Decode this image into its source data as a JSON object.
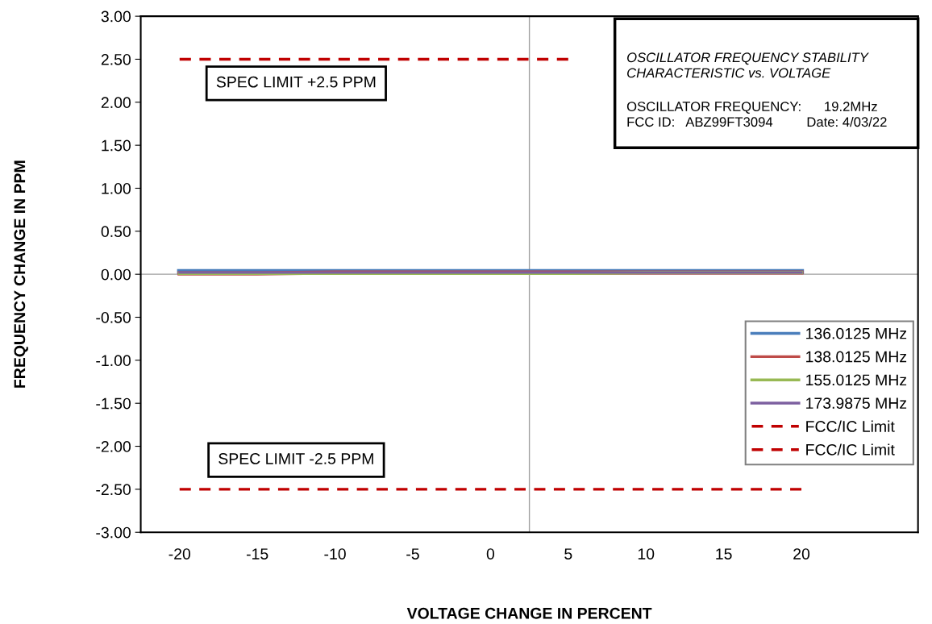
{
  "chart_data": {
    "type": "line",
    "xlabel": "VOLTAGE CHANGE IN PERCENT",
    "ylabel": "FREQUENCY CHANGE IN PPM",
    "x": [
      -20,
      -15,
      -10,
      -5,
      0,
      5,
      10,
      15,
      20
    ],
    "series": [
      {
        "name": "136.0125 MHz",
        "color": "#4a7ebb",
        "values": [
          0.03,
          0.03,
          0.03,
          0.03,
          0.03,
          0.03,
          0.03,
          0.03,
          0.03
        ]
      },
      {
        "name": "138.0125 MHz",
        "color": "#be4b48",
        "values": [
          0.01,
          0.01,
          0.02,
          0.02,
          0.02,
          0.02,
          0.02,
          0.02,
          0.02
        ]
      },
      {
        "name": "155.0125 MHz",
        "color": "#98b954",
        "values": [
          0.01,
          0.01,
          0.01,
          0.01,
          0.01,
          0.01,
          0.02,
          0.02,
          0.02
        ]
      },
      {
        "name": "173.9875 MHz",
        "color": "#7d60a0",
        "values": [
          0.02,
          0.02,
          0.02,
          0.02,
          0.02,
          0.02,
          0.02,
          0.02,
          0.02
        ]
      },
      {
        "name": "FCC/IC Limit",
        "color": "#c00000",
        "line_style": "dashed",
        "values": [
          2.5,
          2.5,
          2.5,
          2.5,
          2.5,
          2.5,
          null,
          null,
          null
        ]
      },
      {
        "name": "FCC/IC Limit",
        "color": "#c00000",
        "line_style": "dashed",
        "values": [
          -2.5,
          -2.5,
          -2.5,
          -2.5,
          -2.5,
          -2.5,
          -2.5,
          -2.5,
          -2.5
        ]
      }
    ],
    "xlim": [
      -22.5,
      27.5
    ],
    "xticks": [
      -20,
      -15,
      -10,
      -5,
      0,
      5,
      10,
      15,
      20
    ],
    "ylim": [
      -3,
      3
    ],
    "yticks": [
      {
        "value": 3,
        "label": "3.00"
      },
      {
        "value": 2.5,
        "label": "2.50"
      },
      {
        "value": 2,
        "label": "2.00"
      },
      {
        "value": 1.5,
        "label": "1.50"
      },
      {
        "value": 1,
        "label": "1.00"
      },
      {
        "value": 0.5,
        "label": "0.50"
      },
      {
        "value": 0,
        "label": "0.00"
      },
      {
        "value": -0.5,
        "label": "-0.50"
      },
      {
        "value": -1,
        "label": "-1.00"
      },
      {
        "value": -1.5,
        "label": "-1.50"
      },
      {
        "value": -2,
        "label": "-2.00"
      },
      {
        "value": -2.5,
        "label": "-2.50"
      },
      {
        "value": -3,
        "label": "-3.00"
      }
    ],
    "ref_lines": [
      {
        "axis": "x",
        "value": 2.5,
        "color": "#a0a0a0"
      },
      {
        "axis": "y",
        "value": 0,
        "color": "#a0a0a0"
      }
    ],
    "annotations": [
      "SPEC LIMIT +2.5 PPM",
      "SPEC LIMIT -2.5 PPM",
      "OSCILLATOR FREQUENCY STABILITY\nCHARACTERISTIC vs. VOLTAGE",
      "OSCILLATOR FREQUENCY:      19.2MHz\nFCC ID:   ABZ99FT3094         Date: 4/03/22"
    ],
    "legend": "right",
    "grid": false,
    "marker": "none",
    "line_style": "solid"
  }
}
